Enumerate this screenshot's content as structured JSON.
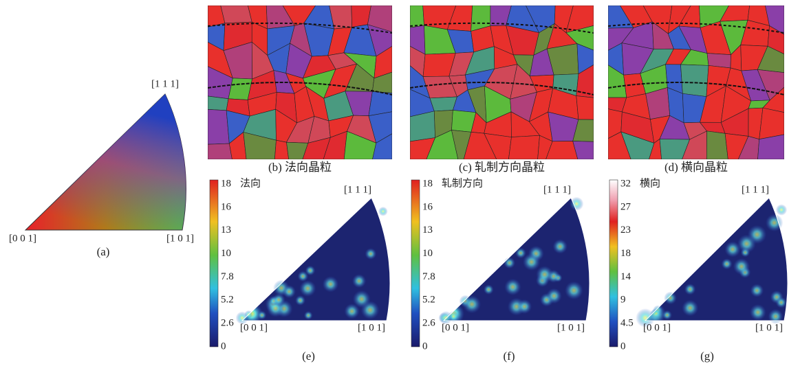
{
  "panel_a": {
    "labels": {
      "top": "[1 1 1]",
      "left": "[0 0 1]",
      "right": "[1 0 1]"
    },
    "caption": "(a)"
  },
  "maps": [
    {
      "caption": "(b) 法向晶粒"
    },
    {
      "caption": "(c) 轧制方向晶粒"
    },
    {
      "caption": "(d) 横向晶粒"
    }
  ],
  "pole_figures": [
    {
      "title": "法向",
      "colorbar_ticks": [
        18,
        16,
        13,
        10,
        7.8,
        5.2,
        2.6,
        0
      ],
      "corner_labels": {
        "top": "[1 1 1]",
        "left": "[0 0 1]",
        "right": "[1 0 1]"
      },
      "caption": "(e)"
    },
    {
      "title": "轧制方向",
      "colorbar_ticks": [
        18,
        16,
        13,
        10,
        7.8,
        5.2,
        2.6,
        0
      ],
      "corner_labels": {
        "top": "[1 1 1]",
        "left": "[0 0 1]",
        "right": "[1 0 1]"
      },
      "caption": "(f)"
    },
    {
      "title": "横向",
      "colorbar_ticks": [
        32,
        27,
        23,
        18,
        14,
        9,
        4.5,
        0
      ],
      "corner_labels": {
        "top": "[1 1 1]",
        "left": "[0 0 1]",
        "right": "[1 0 1]"
      },
      "caption": "(g)"
    }
  ]
}
